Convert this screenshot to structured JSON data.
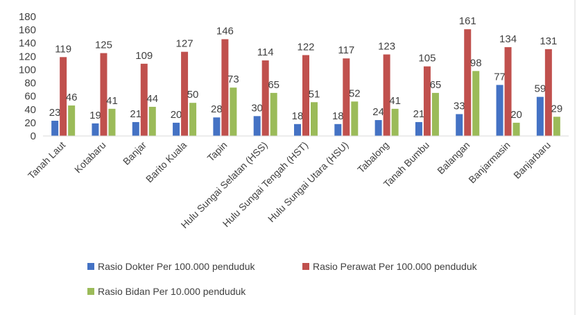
{
  "chart_data": {
    "type": "bar",
    "title": "",
    "xlabel": "",
    "ylabel": "",
    "ylim": [
      0,
      180
    ],
    "yticks": [
      0,
      20,
      40,
      60,
      80,
      100,
      120,
      140,
      160,
      180
    ],
    "grid": false,
    "legend_position": "bottom",
    "categories": [
      "Tanah Laut",
      "Kotabaru",
      "Banjar",
      "Barito Kuala",
      "Tapin",
      "Hulu Sungai Selatan (HSS)",
      "Hulu Sungai Tengah (HST)",
      "Hulu Sungai Utara (HSU)",
      "Tabalong",
      "Tanah Bumbu",
      "Balangan",
      "Banjarmasin",
      "Banjarbaru"
    ],
    "series": [
      {
        "name": "Rasio Dokter Per 100.000 penduduk",
        "color": "#4472C4",
        "values": [
          23,
          19,
          21,
          20,
          28,
          30,
          18,
          18,
          24,
          21,
          33,
          77,
          59
        ]
      },
      {
        "name": "Rasio Perawat Per 100.000 penduduk",
        "color": "#C0504D",
        "values": [
          119,
          125,
          109,
          127,
          146,
          114,
          122,
          117,
          123,
          105,
          161,
          134,
          131
        ]
      },
      {
        "name": "Rasio Bidan Per 10.000 penduduk",
        "color": "#9BBB59",
        "values": [
          46,
          41,
          44,
          50,
          73,
          65,
          51,
          52,
          41,
          65,
          98,
          20,
          29
        ]
      }
    ]
  }
}
